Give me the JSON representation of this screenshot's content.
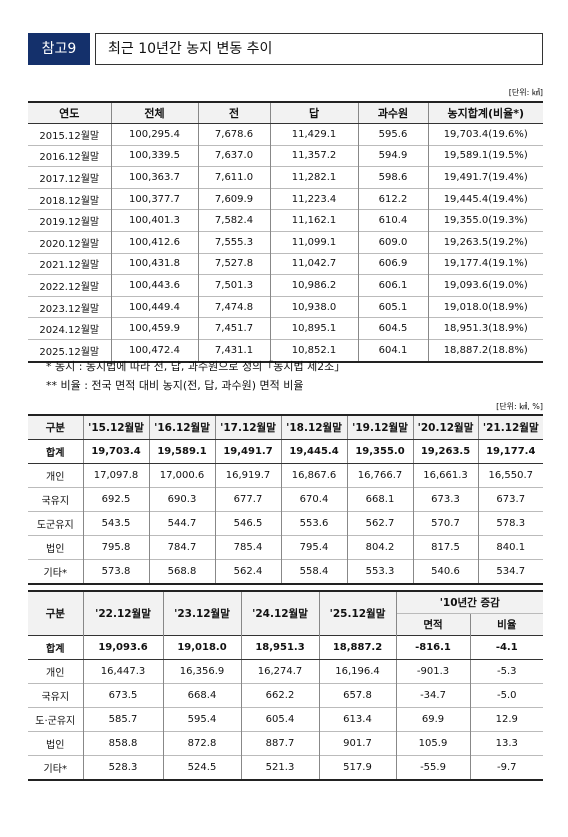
{
  "header": {
    "badge": "참고9",
    "title": "최근 10년간 농지 변동 추이"
  },
  "table1": {
    "unit": "[단위: ㎢]",
    "columns": [
      "연도",
      "전체",
      "전",
      "답",
      "과수원",
      "농지합계(비율*)"
    ],
    "rows": [
      [
        "2015.12월말",
        "100,295.4",
        "7,678.6",
        "11,429.1",
        "595.6",
        "19,703.4(19.6%)"
      ],
      [
        "2016.12월말",
        "100,339.5",
        "7,637.0",
        "11,357.2",
        "594.9",
        "19,589.1(19.5%)"
      ],
      [
        "2017.12월말",
        "100,363.7",
        "7,611.0",
        "11,282.1",
        "598.6",
        "19,491.7(19.4%)"
      ],
      [
        "2018.12월말",
        "100,377.7",
        "7,609.9",
        "11,223.4",
        "612.2",
        "19,445.4(19.4%)"
      ],
      [
        "2019.12월말",
        "100,401.3",
        "7,582.4",
        "11,162.1",
        "610.4",
        "19,355.0(19.3%)"
      ],
      [
        "2020.12월말",
        "100,412.6",
        "7,555.3",
        "11,099.1",
        "609.0",
        "19,263.5(19.2%)"
      ],
      [
        "2021.12월말",
        "100,431.8",
        "7,527.8",
        "11,042.7",
        "606.9",
        "19,177.4(19.1%)"
      ],
      [
        "2022.12월말",
        "100,443.6",
        "7,501.3",
        "10,986.2",
        "606.1",
        "19,093.6(19.0%)"
      ],
      [
        "2023.12월말",
        "100,449.4",
        "7,474.8",
        "10,938.0",
        "605.1",
        "19,018.0(18.9%)"
      ],
      [
        "2024.12월말",
        "100,459.9",
        "7,451.7",
        "10,895.1",
        "604.5",
        "18,951.3(18.9%)"
      ],
      [
        "2025.12월말",
        "100,472.4",
        "7,431.1",
        "10,852.1",
        "604.1",
        "18,887.2(18.8%)"
      ]
    ]
  },
  "notes": [
    "* 농지 : 농지법에 따라 전, 답, 과수원으로 정의「농지법 제2조」",
    "** 비율 : 전국 면적 대비 농지(전, 답, 과수원) 면적 비율"
  ],
  "table2": {
    "unit": "[단위: ㎢, %]",
    "columns": [
      "구분",
      "'15.12월말",
      "'16.12월말",
      "'17.12월말",
      "'18.12월말",
      "'19.12월말",
      "'20.12월말",
      "'21.12월말"
    ],
    "rows": [
      [
        "합계",
        "19,703.4",
        "19,589.1",
        "19,491.7",
        "19,445.4",
        "19,355.0",
        "19,263.5",
        "19,177.4"
      ],
      [
        "개인",
        "17,097.8",
        "17,000.6",
        "16,919.7",
        "16,867.6",
        "16,766.7",
        "16,661.3",
        "16,550.7"
      ],
      [
        "국유지",
        "692.5",
        "690.3",
        "677.7",
        "670.4",
        "668.1",
        "673.3",
        "673.7"
      ],
      [
        "도군유지",
        "543.5",
        "544.7",
        "546.5",
        "553.6",
        "562.7",
        "570.7",
        "578.3"
      ],
      [
        "법인",
        "795.8",
        "784.7",
        "785.4",
        "795.4",
        "804.2",
        "817.5",
        "840.1"
      ],
      [
        "기타*",
        "573.8",
        "568.8",
        "562.4",
        "558.4",
        "553.3",
        "540.6",
        "534.7"
      ]
    ]
  },
  "table3": {
    "columns": [
      "구분",
      "'22.12월말",
      "'23.12월말",
      "'24.12월말",
      "'25.12월말"
    ],
    "group_header": "'10년간 증감",
    "sub_columns": [
      "면적",
      "비율"
    ],
    "rows": [
      [
        "합계",
        "19,093.6",
        "19,018.0",
        "18,951.3",
        "18,887.2",
        "-816.1",
        "-4.1"
      ],
      [
        "개인",
        "16,447.3",
        "16,356.9",
        "16,274.7",
        "16,196.4",
        "-901.3",
        "-5.3"
      ],
      [
        "국유지",
        "673.5",
        "668.4",
        "662.2",
        "657.8",
        "-34.7",
        "-5.0"
      ],
      [
        "도·군유지",
        "585.7",
        "595.4",
        "605.4",
        "613.4",
        "69.9",
        "12.9"
      ],
      [
        "법인",
        "858.8",
        "872.8",
        "887.7",
        "901.7",
        "105.9",
        "13.3"
      ],
      [
        "기타*",
        "528.3",
        "524.5",
        "521.3",
        "517.9",
        "-55.9",
        "-9.7"
      ]
    ]
  }
}
